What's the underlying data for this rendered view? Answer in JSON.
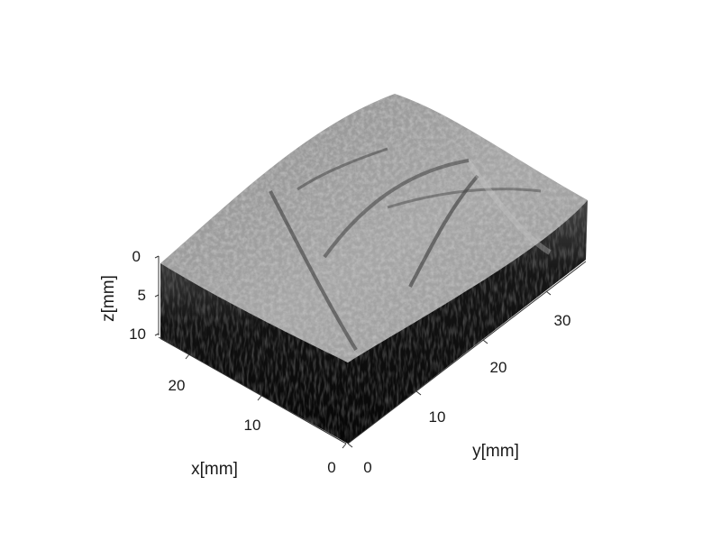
{
  "figure": {
    "z_axis": {
      "label": "z[mm]",
      "ticks": [
        "0",
        "5",
        "10"
      ]
    },
    "x_axis": {
      "label": "x[mm]",
      "ticks": [
        "0",
        "10",
        "20"
      ]
    },
    "y_axis": {
      "label": "y[mm]",
      "ticks": [
        "0",
        "10",
        "20",
        "30"
      ]
    },
    "colors": {
      "top_surface": "#9a9a9a",
      "side_faces": "#0d0d0d",
      "axis": "#333333",
      "background": "#ffffff"
    }
  }
}
